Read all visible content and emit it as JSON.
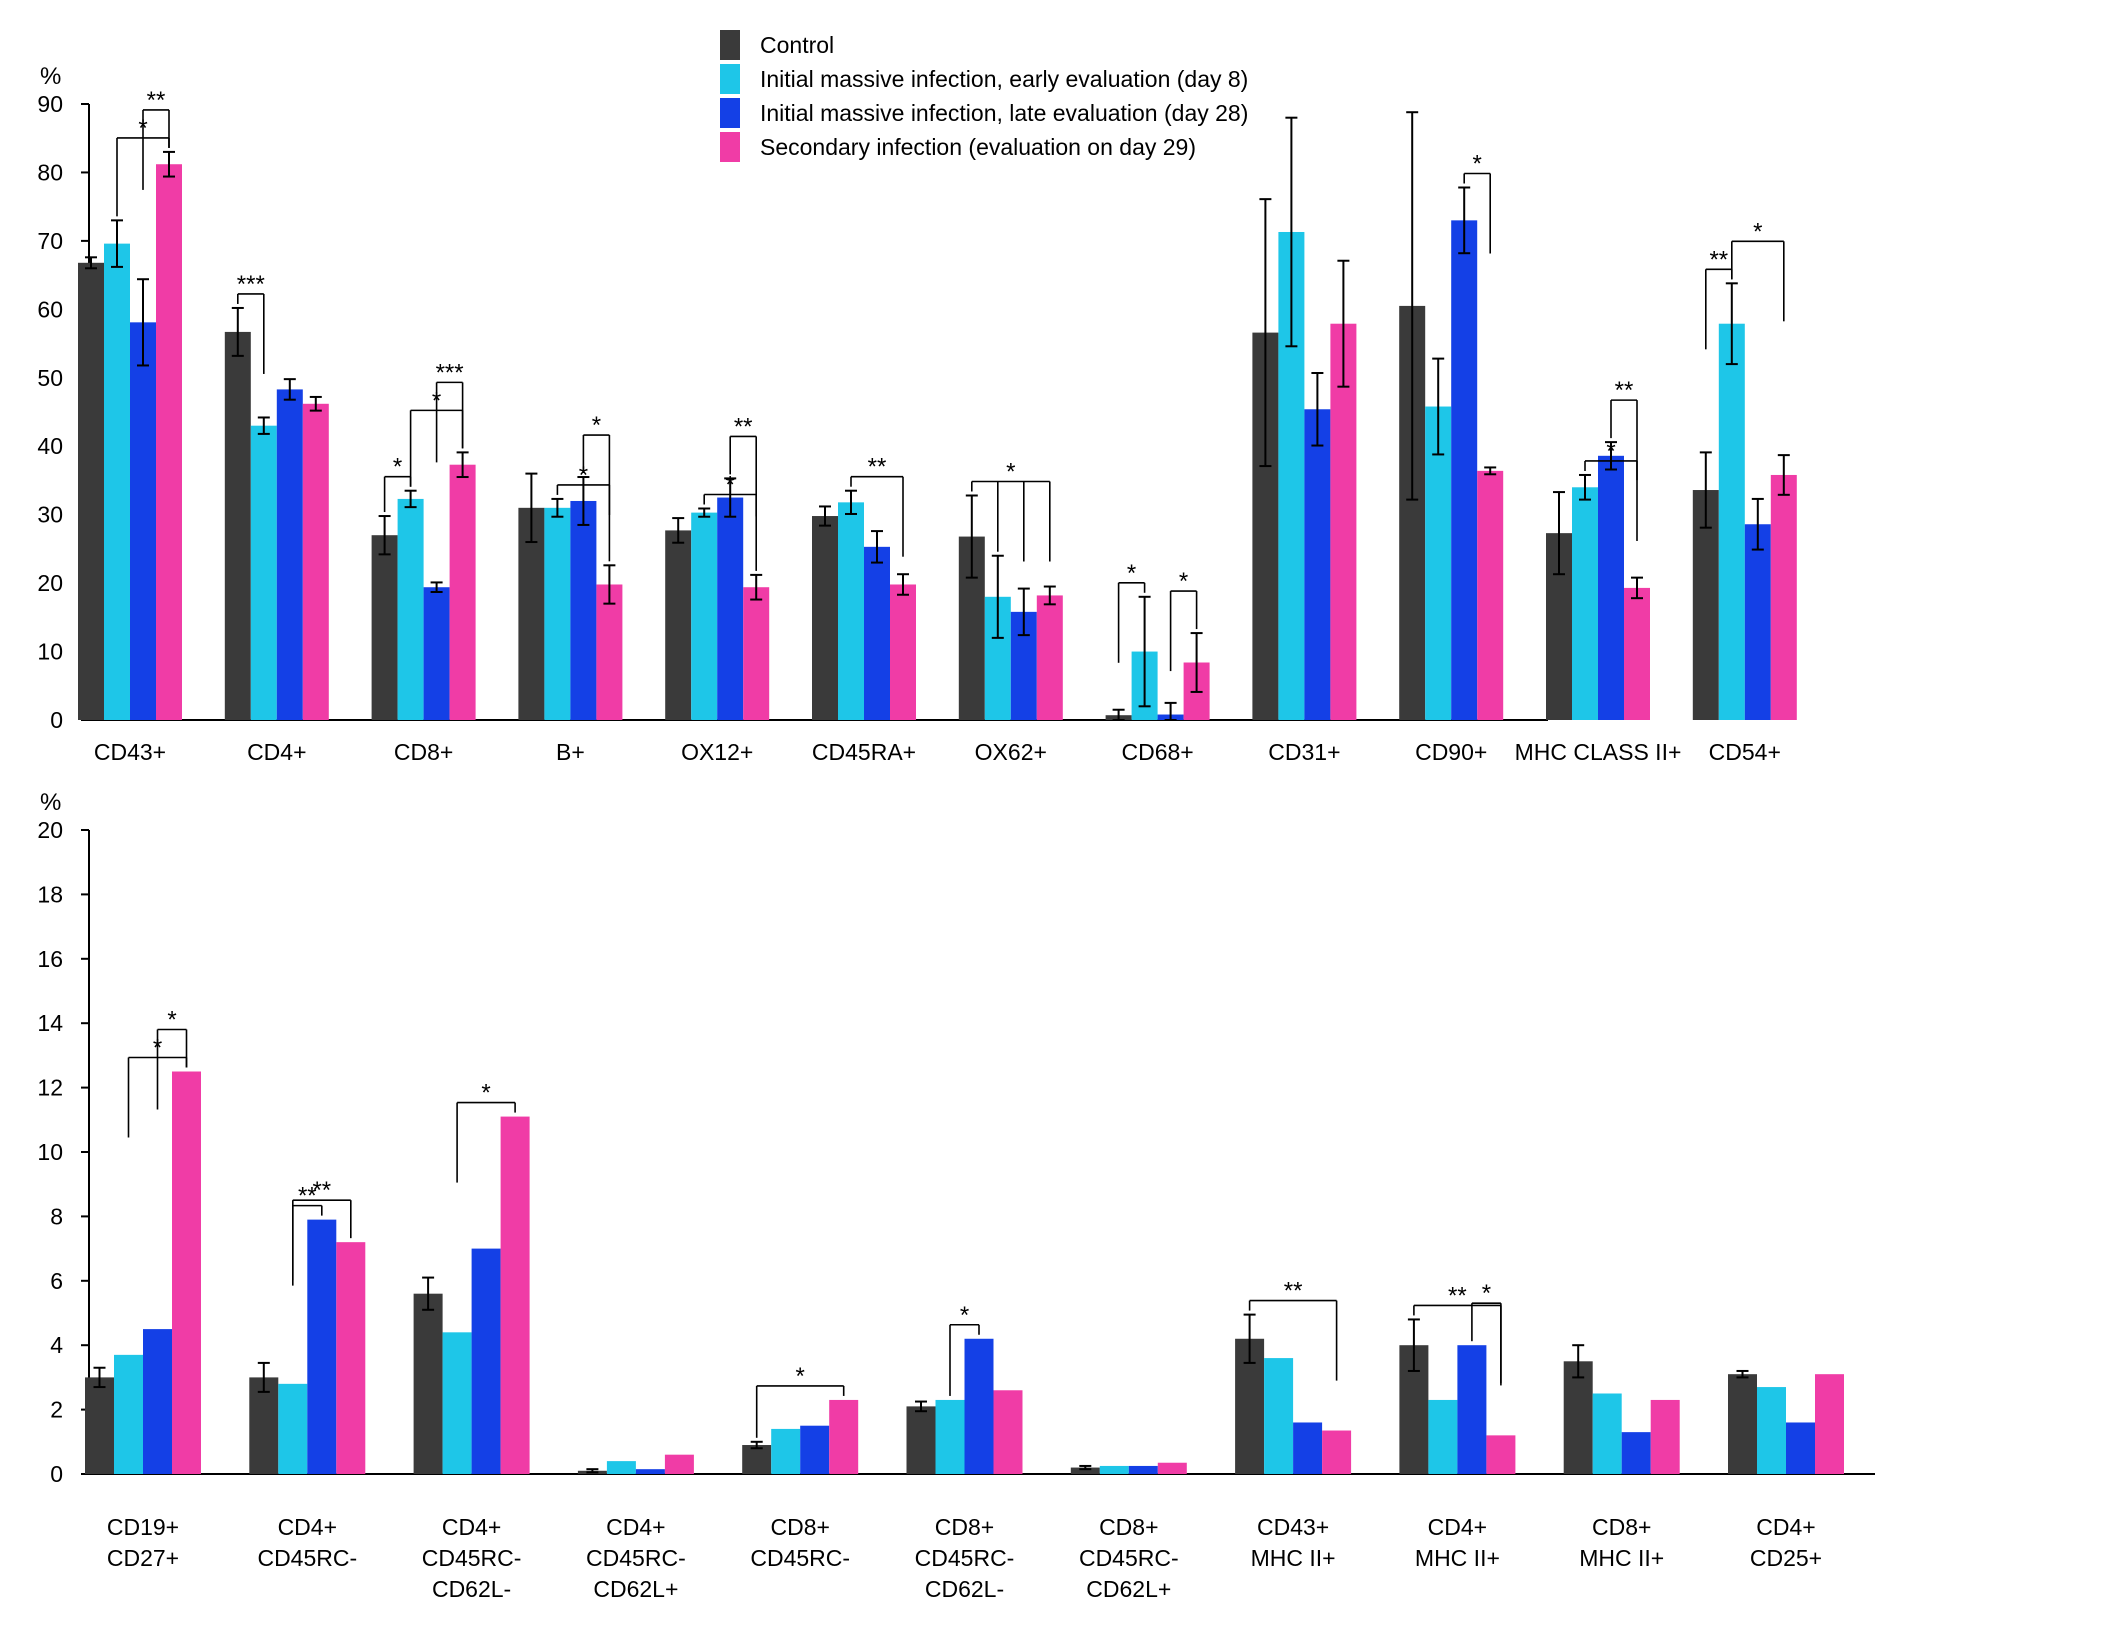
{
  "legend": {
    "placement": "top-center",
    "entries": [
      {
        "label": "Control",
        "color": "#3a3a3a"
      },
      {
        "label": "Initial massive infection, early evaluation (day 8)",
        "color": "#1ec6e8"
      },
      {
        "label": "Initial massive infection, late evaluation (day 28)",
        "color": "#1440e6"
      },
      {
        "label": "Secondary infection (evaluation on day 29)",
        "color": "#f03ca6"
      }
    ]
  },
  "chart_data": [
    {
      "type": "bar",
      "ylabel": "%",
      "ylim": [
        0,
        90
      ],
      "yticks": [
        "0",
        "10",
        "20",
        "30",
        "40",
        "50",
        "60",
        "70",
        "80",
        "90"
      ],
      "categories": [
        [
          "CD43+"
        ],
        [
          "CD4+"
        ],
        [
          "CD8+"
        ],
        [
          "B+"
        ],
        [
          "OX12+"
        ],
        [
          "CD45RA+"
        ],
        [
          "OX62+"
        ],
        [
          "CD68+"
        ],
        [
          "CD31+"
        ],
        [
          "CD90+"
        ],
        [
          "MHC CLASS II+"
        ],
        [
          "CD54+"
        ]
      ],
      "series": [
        {
          "name": "Control",
          "values": [
            66.8,
            56.7,
            27.0,
            31.0,
            27.7,
            29.8,
            26.8,
            0.7,
            56.6,
            60.5,
            27.3,
            33.6
          ],
          "errors": [
            0.8,
            3.5,
            2.8,
            5.0,
            1.8,
            1.4,
            6.0,
            0.8,
            19.5,
            28.3,
            6.0,
            5.5
          ]
        },
        {
          "name": "Initial massive infection, early evaluation (day 8)",
          "values": [
            69.6,
            43.0,
            32.3,
            31.0,
            30.3,
            31.8,
            18.0,
            10.0,
            71.3,
            45.8,
            34.0,
            57.9
          ],
          "errors": [
            3.4,
            1.2,
            1.2,
            1.3,
            0.6,
            1.7,
            6.0,
            8.0,
            16.7,
            7.0,
            1.8,
            5.9
          ]
        },
        {
          "name": "Initial massive infection, late evaluation (day 28)",
          "values": [
            58.1,
            48.3,
            19.4,
            32.0,
            32.5,
            25.3,
            15.8,
            0.8,
            45.4,
            73.0,
            38.6,
            28.6
          ],
          "errors": [
            6.3,
            1.5,
            0.7,
            3.5,
            2.8,
            2.3,
            3.4,
            1.7,
            5.3,
            4.8,
            2.0,
            3.7
          ]
        },
        {
          "name": "Secondary infection (evaluation on day 29)",
          "values": [
            81.2,
            46.2,
            37.3,
            19.8,
            19.4,
            19.8,
            18.2,
            8.4,
            57.9,
            36.4,
            19.3,
            35.8
          ],
          "errors": [
            1.8,
            1.0,
            1.8,
            2.8,
            1.8,
            1.5,
            1.3,
            4.3,
            9.2,
            0.5,
            1.5,
            2.9
          ]
        }
      ],
      "significance": [
        {
          "category": 0,
          "from": 1,
          "to": 3,
          "label": "*"
        },
        {
          "category": 0,
          "from": 2,
          "to": 3,
          "label": "**"
        },
        {
          "category": 1,
          "from": 0,
          "to": 1,
          "label": "***"
        },
        {
          "category": 2,
          "from": 0,
          "to": 1,
          "label": "*"
        },
        {
          "category": 2,
          "from": 1,
          "to": 3,
          "label": "*"
        },
        {
          "category": 2,
          "from": 2,
          "to": 3,
          "label": "***"
        },
        {
          "category": 3,
          "from": 1,
          "to": 3,
          "label": "*"
        },
        {
          "category": 3,
          "from": 2,
          "to": 3,
          "label": "*"
        },
        {
          "category": 4,
          "from": 1,
          "to": 3,
          "label": "*"
        },
        {
          "category": 4,
          "from": 2,
          "to": 3,
          "label": "**"
        },
        {
          "category": 5,
          "from": 1,
          "to": 3,
          "label": "**"
        },
        {
          "category": 6,
          "from": 0,
          "to": [
            1,
            2,
            3
          ],
          "label": "*"
        },
        {
          "category": 7,
          "from": 0,
          "to": 1,
          "label": "*"
        },
        {
          "category": 7,
          "from": 2,
          "to": 3,
          "label": "*"
        },
        {
          "category": 9,
          "from": 2,
          "to": 3,
          "label": "*"
        },
        {
          "category": 10,
          "from": 1,
          "to": 3,
          "label": "*"
        },
        {
          "category": 10,
          "from": 2,
          "to": 3,
          "label": "**"
        },
        {
          "category": 11,
          "from": 0,
          "to": 1,
          "label": "**"
        },
        {
          "category": 11,
          "from": 1,
          "to": 3,
          "label": "*"
        }
      ]
    },
    {
      "type": "bar",
      "ylabel": "%",
      "ylim": [
        0,
        20
      ],
      "yticks": [
        "0",
        "2",
        "4",
        "6",
        "8",
        "10",
        "12",
        "14",
        "16",
        "18",
        "20"
      ],
      "categories": [
        [
          "CD19+",
          "CD27+"
        ],
        [
          "CD4+",
          "CD45RC-"
        ],
        [
          "CD4+",
          "CD45RC-",
          "CD62L-"
        ],
        [
          "CD4+",
          "CD45RC-",
          "CD62L+"
        ],
        [
          "CD8+",
          "CD45RC-"
        ],
        [
          "CD8+",
          "CD45RC-",
          "CD62L-"
        ],
        [
          "CD8+",
          "CD45RC-",
          "CD62L+"
        ],
        [
          "CD43+",
          "MHC II+"
        ],
        [
          "CD4+",
          "MHC II+"
        ],
        [
          "CD8+",
          "MHC II+"
        ],
        [
          "CD4+",
          "CD25+"
        ]
      ],
      "series": [
        {
          "name": "Control",
          "values": [
            3.0,
            3.0,
            5.6,
            0.1,
            0.9,
            2.1,
            0.2,
            4.2,
            4.0,
            3.5,
            3.1
          ],
          "errors": [
            0.3,
            0.45,
            0.5,
            0.05,
            0.1,
            0.15,
            0.05,
            0.75,
            0.8,
            0.5,
            0.1
          ]
        },
        {
          "name": "Initial massive infection, early evaluation (day 8)",
          "values": [
            3.7,
            2.8,
            4.4,
            0.4,
            1.4,
            2.3,
            0.25,
            3.6,
            2.3,
            2.5,
            2.7
          ]
        },
        {
          "name": "Initial massive infection, late evaluation (day 28)",
          "values": [
            4.5,
            7.9,
            7.0,
            0.15,
            1.5,
            4.2,
            0.25,
            1.6,
            4.0,
            1.3,
            1.6
          ]
        },
        {
          "name": "Secondary infection (evaluation on day 29)",
          "values": [
            12.5,
            7.2,
            11.1,
            0.6,
            2.3,
            2.6,
            0.35,
            1.35,
            1.2,
            2.3,
            3.1
          ]
        }
      ],
      "significance": [
        {
          "category": 0,
          "from": 1,
          "to": 3,
          "label": "*"
        },
        {
          "category": 0,
          "from": 2,
          "to": 3,
          "label": "*"
        },
        {
          "category": 1,
          "from": 1,
          "to": 2,
          "label": "**"
        },
        {
          "category": 1,
          "from": 1,
          "to": 3,
          "label": "**"
        },
        {
          "category": 2,
          "from": 1,
          "to": 3,
          "label": "*"
        },
        {
          "category": 4,
          "from": 0,
          "to": 3,
          "label": "*"
        },
        {
          "category": 5,
          "from": 1,
          "to": 2,
          "label": "*"
        },
        {
          "category": 7,
          "from": 0,
          "to": 3,
          "label": "**"
        },
        {
          "category": 8,
          "from": 0,
          "to": 3,
          "label": "**"
        },
        {
          "category": 8,
          "from": 2,
          "to": 3,
          "label": "*"
        }
      ]
    }
  ]
}
